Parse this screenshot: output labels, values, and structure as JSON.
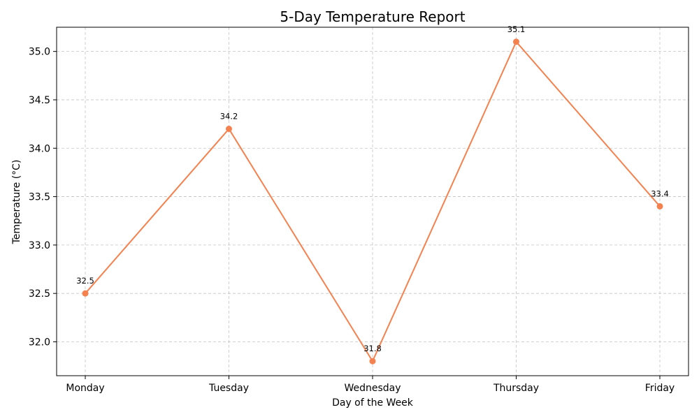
{
  "chart_data": {
    "type": "line",
    "title": "5-Day Temperature Report",
    "xlabel": "Day of the Week",
    "ylabel": "Temperature (°C)",
    "categories": [
      "Monday",
      "Tuesday",
      "Wednesday",
      "Thursday",
      "Friday"
    ],
    "series": [
      {
        "values": [
          32.5,
          34.2,
          31.8,
          35.1,
          33.4
        ],
        "color": "#f5814f"
      }
    ],
    "data_labels": [
      "32.5",
      "34.2",
      "31.8",
      "35.1",
      "33.4"
    ],
    "yticks": [
      "32.0",
      "32.5",
      "33.0",
      "33.5",
      "34.0",
      "34.5",
      "35.0"
    ],
    "ylim": [
      31.65,
      35.25
    ],
    "grid": true
  }
}
